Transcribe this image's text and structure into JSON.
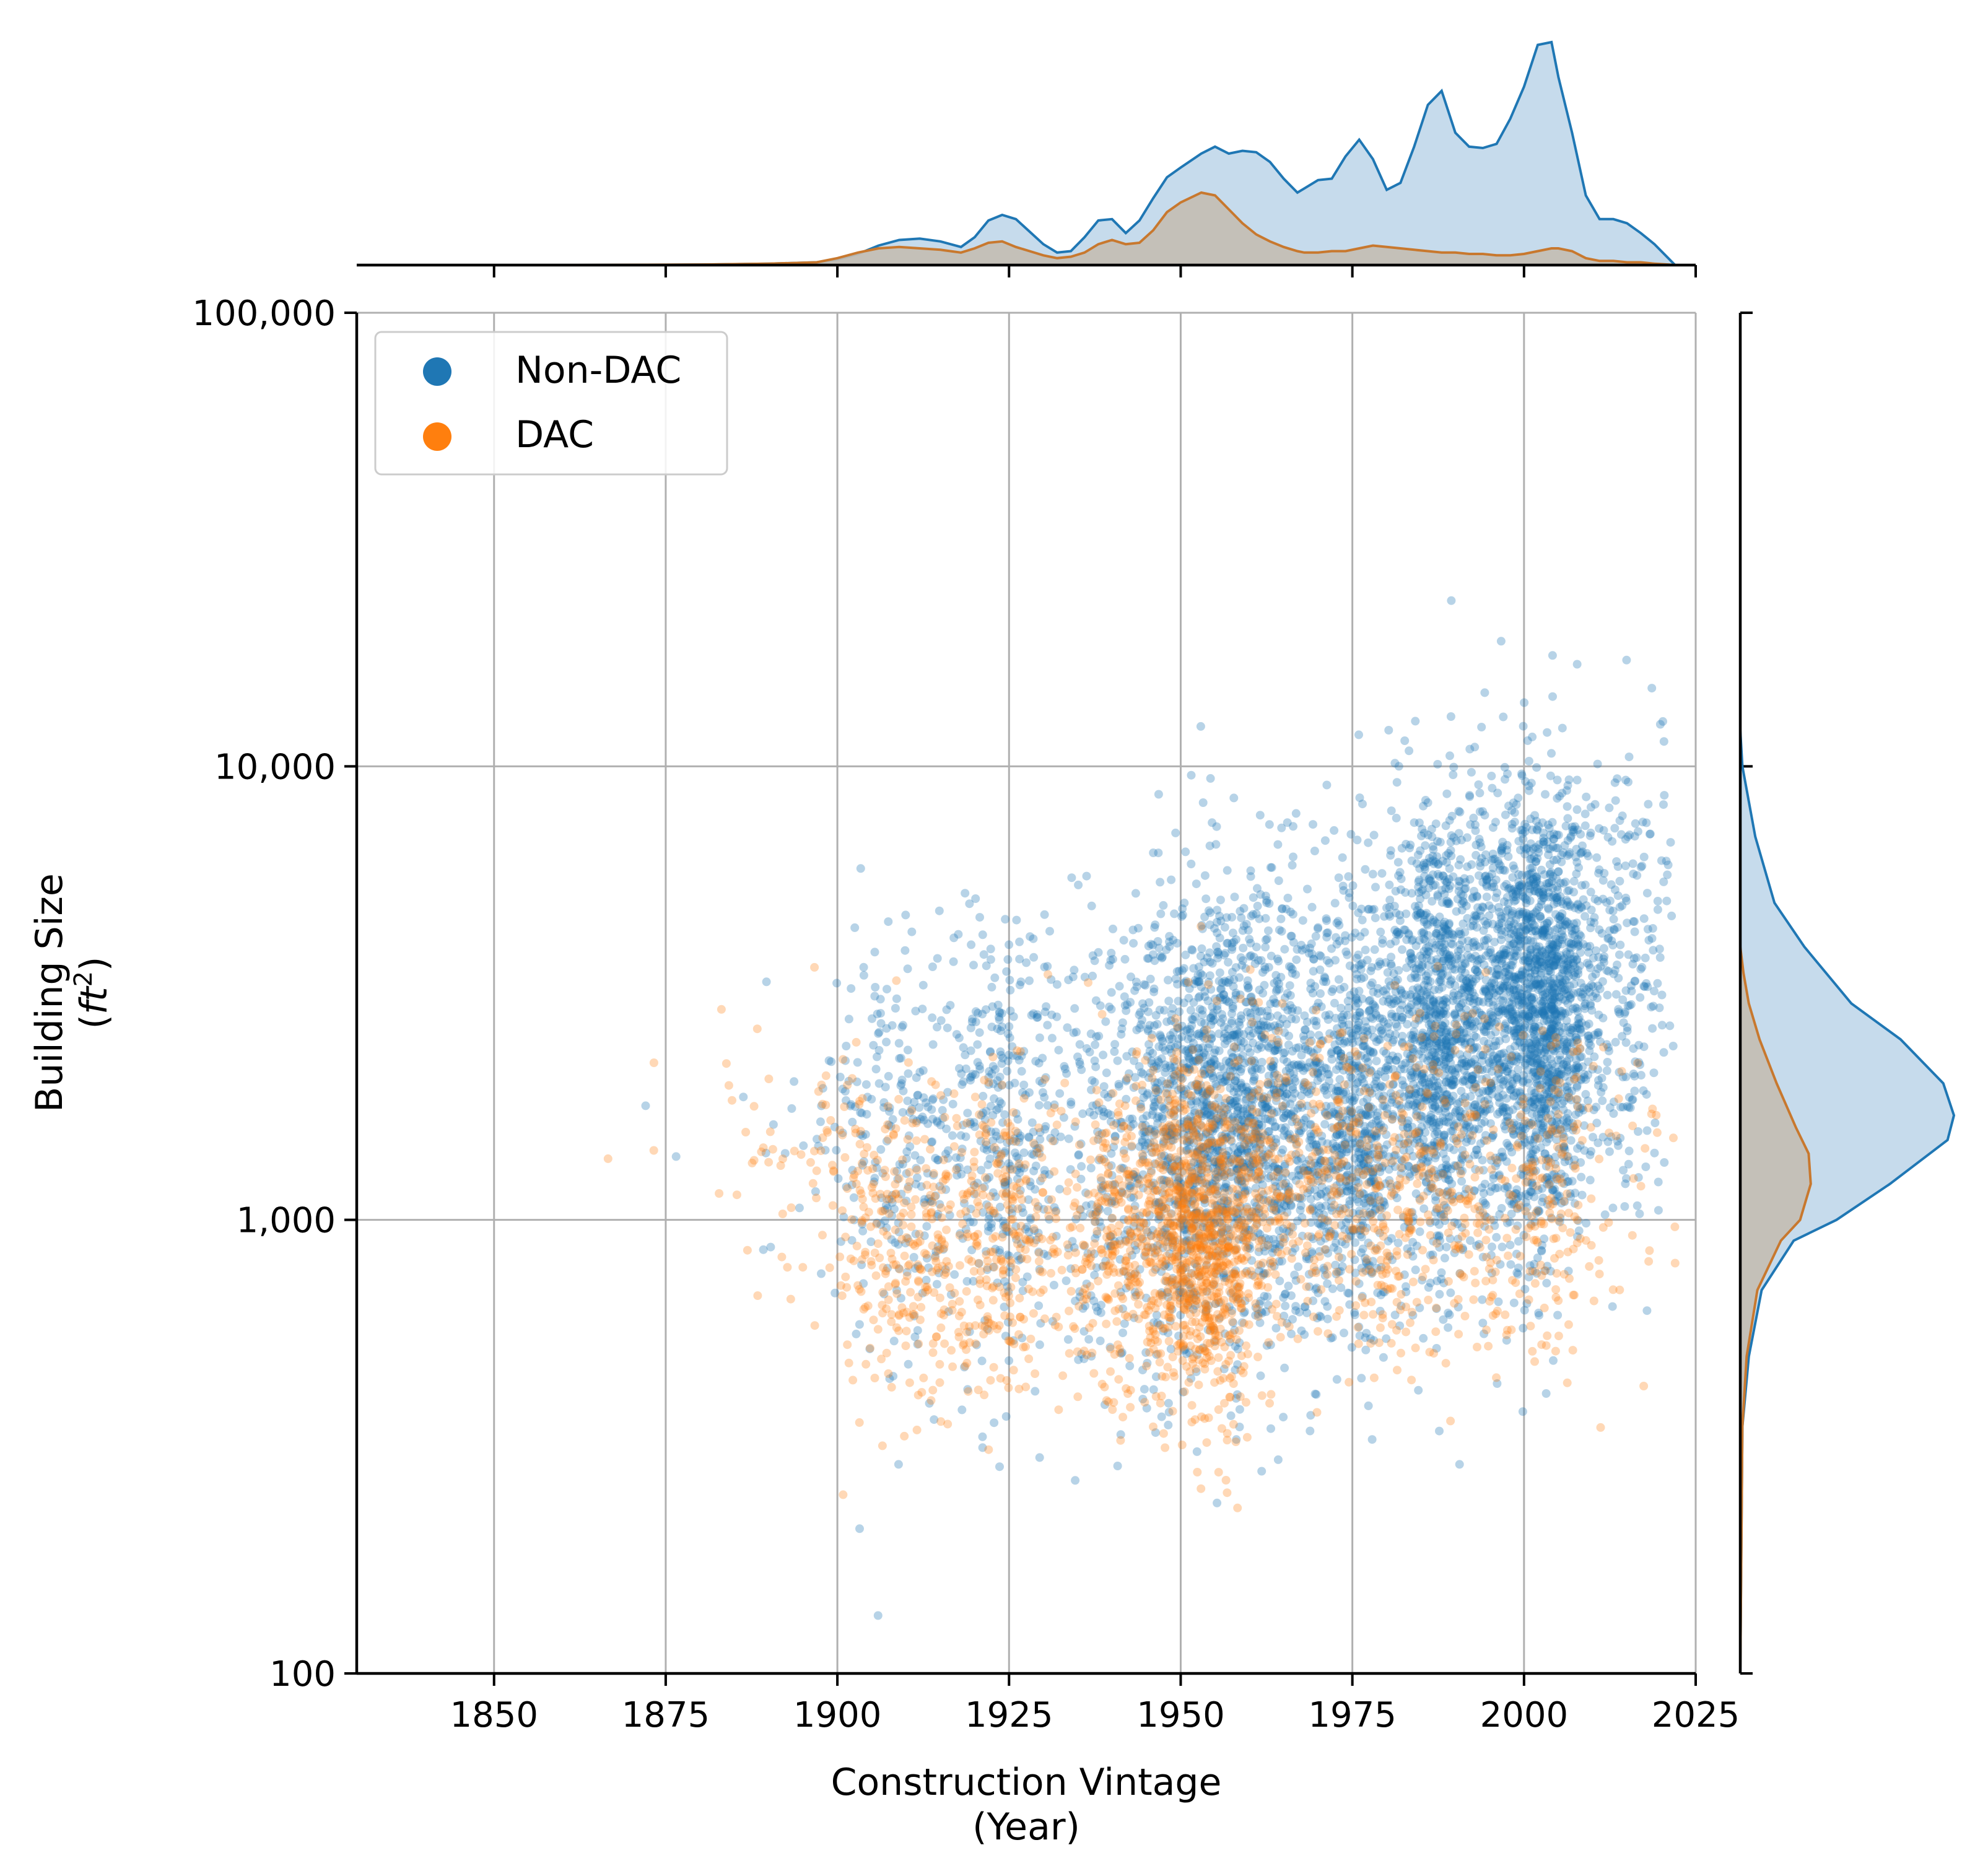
{
  "chart_data": {
    "type": "scatter",
    "subtype": "jointplot",
    "title": "",
    "xlabel_lines": [
      "Construction Vintage",
      "(Year)"
    ],
    "ylabel_line1": "Building Size",
    "ylabel_line2_pre": "(",
    "ylabel_line2_unit": "ft",
    "ylabel_line2_sup": "2",
    "ylabel_line2_post": ")",
    "xlim": [
      1830,
      2025
    ],
    "ylim": [
      100,
      100000
    ],
    "yscale": "log",
    "grid": true,
    "legend_position": "upper-left",
    "x_ticks": [
      1850,
      1875,
      1900,
      1925,
      1950,
      1975,
      2000,
      2025
    ],
    "x_tick_labels": [
      "1850",
      "1875",
      "1900",
      "1925",
      "1950",
      "1975",
      "2000",
      "2025"
    ],
    "y_ticks": [
      100,
      1000,
      10000,
      100000
    ],
    "y_tick_labels": [
      "100",
      "1,000",
      "10,000",
      "100,000"
    ],
    "series": [
      {
        "name": "Non-DAC",
        "color": "#1f77b4",
        "density_x": {
          "x": [
            1862,
            1880,
            1890,
            1897,
            1900,
            1903,
            1906,
            1909,
            1912,
            1915,
            1918,
            1920,
            1922,
            1924,
            1926,
            1928,
            1930,
            1932,
            1934,
            1936,
            1938,
            1940,
            1942,
            1944,
            1946,
            1948,
            1950,
            1953,
            1955,
            1957,
            1959,
            1961,
            1963,
            1965,
            1967,
            1968,
            1970,
            1972,
            1974,
            1976,
            1978,
            1980,
            1982,
            1984,
            1986,
            1988,
            1990,
            1992,
            1994,
            1996,
            1998,
            2000,
            2002,
            2004,
            2005,
            2007,
            2009,
            2011,
            2013,
            2015,
            2017,
            2019,
            2021,
            2022
          ],
          "density": [
            0,
            0.003,
            0.01,
            0.02,
            0.04,
            0.08,
            0.14,
            0.18,
            0.19,
            0.17,
            0.13,
            0.2,
            0.32,
            0.36,
            0.33,
            0.24,
            0.15,
            0.09,
            0.1,
            0.2,
            0.32,
            0.33,
            0.23,
            0.32,
            0.48,
            0.63,
            0.7,
            0.8,
            0.85,
            0.8,
            0.82,
            0.81,
            0.74,
            0.62,
            0.52,
            0.55,
            0.61,
            0.62,
            0.78,
            0.9,
            0.76,
            0.54,
            0.59,
            0.85,
            1.15,
            1.25,
            0.95,
            0.85,
            0.84,
            0.87,
            1.05,
            1.28,
            1.58,
            1.6,
            1.35,
            0.95,
            0.5,
            0.33,
            0.33,
            0.3,
            0.23,
            0.15,
            0.05,
            0
          ]
        },
        "density_y": {
          "y": [
            100,
            350,
            500,
            700,
            900,
            1000,
            1200,
            1500,
            1700,
            2000,
            2500,
            3000,
            4000,
            5000,
            7000,
            10000,
            12000
          ],
          "density": [
            0,
            0.01,
            0.04,
            0.1,
            0.25,
            0.45,
            0.7,
            0.97,
            1.0,
            0.95,
            0.75,
            0.52,
            0.3,
            0.16,
            0.07,
            0.01,
            0
          ]
        }
      },
      {
        "name": "DAC",
        "color": "#ff7f0e",
        "density_x": {
          "x": [
            1862,
            1880,
            1890,
            1897,
            1900,
            1903,
            1906,
            1909,
            1912,
            1915,
            1918,
            1920,
            1922,
            1924,
            1926,
            1928,
            1930,
            1932,
            1934,
            1936,
            1938,
            1940,
            1942,
            1944,
            1946,
            1948,
            1950,
            1953,
            1955,
            1957,
            1959,
            1961,
            1963,
            1965,
            1967,
            1968,
            1970,
            1972,
            1974,
            1976,
            1978,
            1980,
            1982,
            1984,
            1986,
            1988,
            1990,
            1992,
            1994,
            1996,
            1998,
            2000,
            2002,
            2004,
            2005,
            2007,
            2009,
            2011,
            2013,
            2015,
            2017,
            2019,
            2021,
            2022
          ],
          "density": [
            0,
            0.004,
            0.01,
            0.02,
            0.05,
            0.09,
            0.12,
            0.13,
            0.12,
            0.11,
            0.09,
            0.12,
            0.16,
            0.17,
            0.13,
            0.1,
            0.07,
            0.05,
            0.06,
            0.09,
            0.15,
            0.18,
            0.15,
            0.16,
            0.25,
            0.38,
            0.45,
            0.52,
            0.5,
            0.4,
            0.3,
            0.22,
            0.17,
            0.13,
            0.1,
            0.09,
            0.09,
            0.1,
            0.1,
            0.12,
            0.14,
            0.13,
            0.12,
            0.11,
            0.1,
            0.09,
            0.09,
            0.08,
            0.08,
            0.07,
            0.07,
            0.08,
            0.1,
            0.12,
            0.12,
            0.1,
            0.05,
            0.03,
            0.03,
            0.02,
            0.02,
            0.01,
            0.004,
            0
          ]
        },
        "density_y": {
          "y": [
            100,
            350,
            500,
            700,
            900,
            1000,
            1200,
            1400,
            1600,
            2000,
            2500,
            3000,
            3500,
            4000
          ],
          "density": [
            0,
            0.01,
            0.03,
            0.08,
            0.19,
            0.28,
            0.33,
            0.32,
            0.26,
            0.17,
            0.09,
            0.04,
            0.015,
            0
          ]
        }
      }
    ]
  }
}
